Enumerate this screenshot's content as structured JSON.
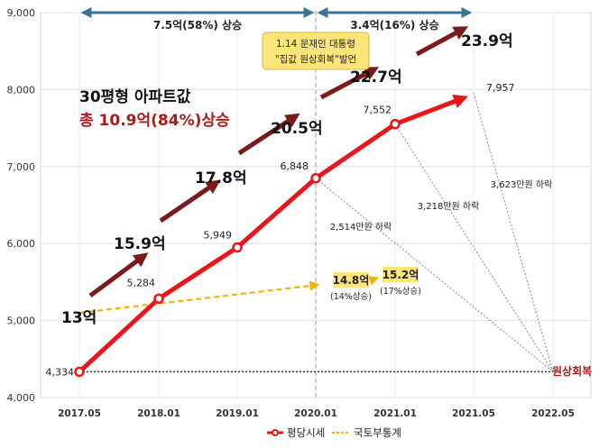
{
  "colors": {
    "series_line": "#e8151b",
    "survey_line": "#f5b400",
    "big_arrow": "#7b1a1a",
    "range_arrow": "#3a7596",
    "callout_bg": "#fde57a",
    "label_box_bg": "#fde57a",
    "dotted": "#999999",
    "restore_text": "#b01919",
    "headline_red": "#b01919"
  },
  "headline": {
    "line1": "30평형 아파트값",
    "line2": "총 10.9억(84%)상승"
  },
  "ranges": [
    {
      "label": "7.5억(58%) 상승",
      "from": "2017.05",
      "to": "2020.01"
    },
    {
      "label": "3.4억(16%) 상승",
      "from": "2020.01",
      "to": "2021.05"
    }
  ],
  "callout": {
    "line1": "1.14 문재인 대통령",
    "line2": "\"집값 원상회복\"발언"
  },
  "price_tags": [
    {
      "label": "13억",
      "x": "2017.05"
    },
    {
      "label": "15.9억",
      "x": "2018.01"
    },
    {
      "label": "17.8억",
      "x": "2019.01"
    },
    {
      "label": "20.5억",
      "x": "2020.01"
    },
    {
      "label": "22.7억",
      "x": "2021.01"
    },
    {
      "label": "23.9억",
      "x": "2021.05"
    }
  ],
  "survey_labels": [
    {
      "label": "14.8억",
      "sub": "(14%상승)"
    },
    {
      "label": "15.2억",
      "sub": "(17%상승)"
    }
  ],
  "drops": [
    {
      "label": "2,514만원 하락",
      "from": "2020.01"
    },
    {
      "label": "3,218만원 하락",
      "from": "2021.01"
    },
    {
      "label": "3,623만원 하락",
      "from": "2021.05"
    }
  ],
  "restore_label": "원상회복",
  "chart_data": {
    "type": "line",
    "categories": [
      "2017.05",
      "2018.01",
      "2019.01",
      "2020.01",
      "2021.01",
      "2021.05",
      "2022.05"
    ],
    "ylim": [
      4000,
      9000
    ],
    "yticks": [
      "4,000",
      "5,000",
      "6,000",
      "7,000",
      "8,000",
      "9,000"
    ],
    "grid": true,
    "legend_position": "bottom",
    "series": [
      {
        "name": "평당시세",
        "x": [
          "2017.05",
          "2018.01",
          "2019.01",
          "2020.01",
          "2021.01",
          "2021.05"
        ],
        "values": [
          4334,
          5284,
          5949,
          6848,
          7552,
          7957
        ],
        "labels": [
          "4,334",
          "5,284",
          "5,949",
          "6,848",
          "7,552",
          "7,957"
        ]
      },
      {
        "name": "국토부통계",
        "x": [
          "2017.05",
          "2020.01",
          "2021.01"
        ],
        "values": [
          5100,
          5460,
          5520
        ]
      }
    ],
    "baseline": {
      "value": 4334,
      "from": "2017.05",
      "to": "2022.05"
    }
  }
}
